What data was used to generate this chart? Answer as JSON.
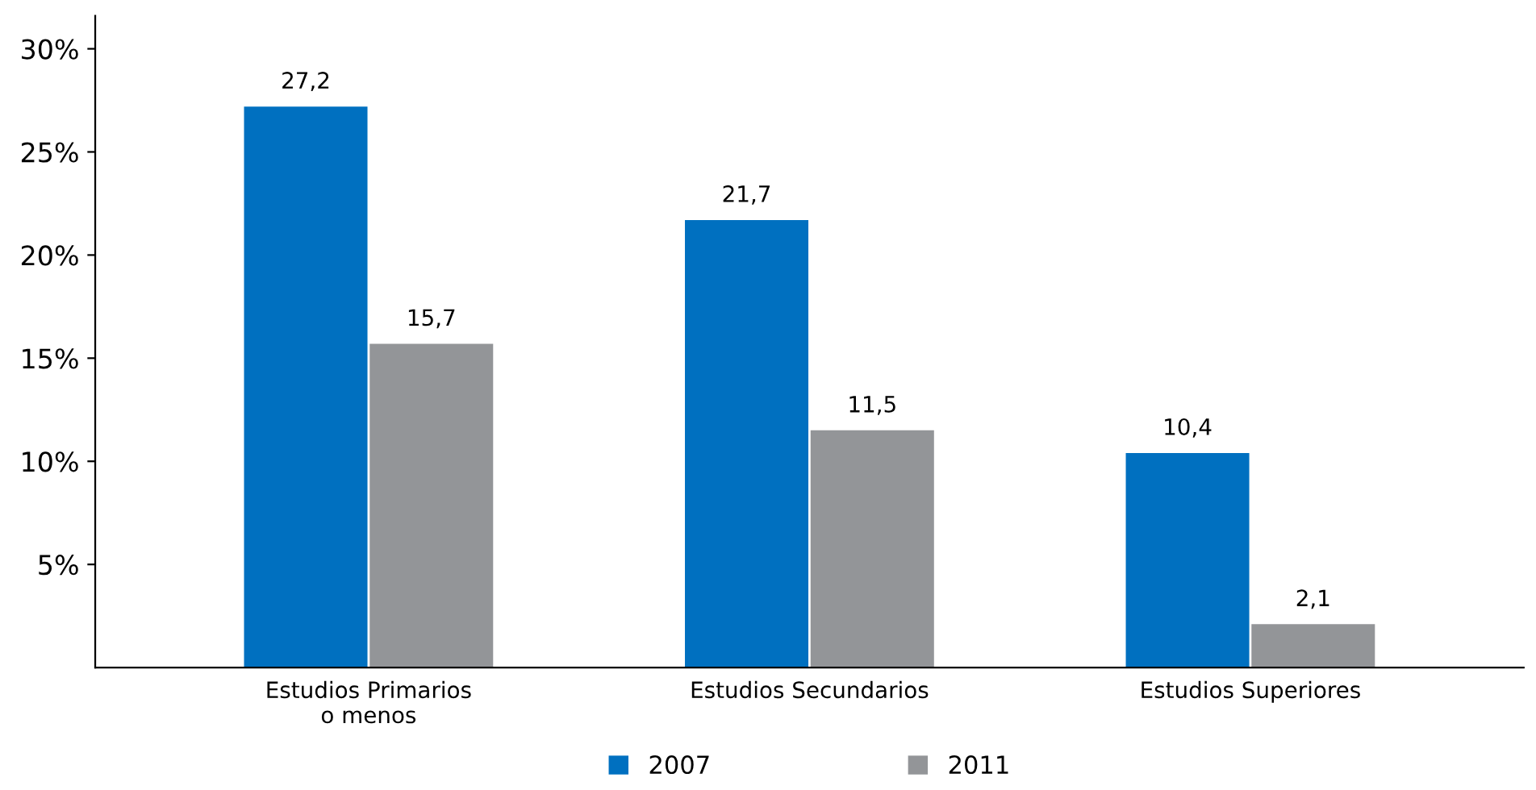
{
  "chart_data": {
    "type": "bar",
    "categories": [
      "Estudios Primarios\no menos",
      "Estudios Secundarios",
      "Estudios Superiores"
    ],
    "series": [
      {
        "name": "2007",
        "color": "#0070c0",
        "values": [
          27.2,
          21.7,
          10.4
        ],
        "value_labels": [
          "27,2",
          "21,7",
          "10,4"
        ]
      },
      {
        "name": "2011",
        "color": "#939598",
        "values": [
          15.7,
          11.5,
          2.1
        ],
        "value_labels": [
          "15,7",
          "11,5",
          "2,1"
        ]
      }
    ],
    "ylim": [
      0,
      31.6
    ],
    "yticks": [
      {
        "value": 5,
        "label": "5%"
      },
      {
        "value": 10,
        "label": "10%"
      },
      {
        "value": 15,
        "label": "15%"
      },
      {
        "value": 20,
        "label": "20%"
      },
      {
        "value": 25,
        "label": "25%"
      },
      {
        "value": 30,
        "label": "30%"
      }
    ],
    "grid": false,
    "legend": "bottom"
  }
}
